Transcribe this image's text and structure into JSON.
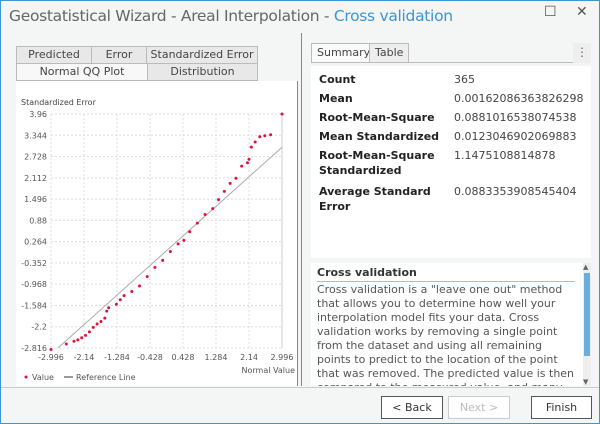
{
  "window": {
    "title_main": "Geostatistical Wizard - Areal Interpolation - ",
    "title_step": "Cross validation",
    "maximize_icon": "maximize-icon",
    "close_icon": "close-icon",
    "maximize": "☐",
    "close": "✕"
  },
  "left_tabs": {
    "row1": [
      "Predicted",
      "Error",
      "Standardized Error"
    ],
    "row2": [
      "Normal QQ Plot",
      "Distribution"
    ],
    "selected": "Normal QQ Plot"
  },
  "chart_data": {
    "type": "scatter",
    "ylabel": "Standardized Error",
    "xlabel": "Normal Value",
    "xlim": [
      -2.996,
      2.996
    ],
    "ylim": [
      -2.816,
      3.96
    ],
    "xticks": [
      "-2.996",
      "-2.14",
      "-1.284",
      "-0.428",
      "0.428",
      "1.284",
      "2.14",
      "2.996"
    ],
    "yticks": [
      "3.96",
      "3.344",
      "2.728",
      "2.112",
      "1.496",
      "0.88",
      "0.264",
      "-0.352",
      "-0.968",
      "-1.584",
      "-2.2",
      "-2.816"
    ],
    "grid": true,
    "legend_placement": "bottom-left",
    "legend": [
      "Value",
      "Reference Line"
    ],
    "series": [
      {
        "name": "Value",
        "color": "#e0103a",
        "points": [
          [
            -2.996,
            -2.86
          ],
          [
            -2.6,
            -2.7
          ],
          [
            -2.4,
            -2.62
          ],
          [
            -2.3,
            -2.58
          ],
          [
            -2.2,
            -2.52
          ],
          [
            -2.1,
            -2.45
          ],
          [
            -2.0,
            -2.35
          ],
          [
            -1.9,
            -2.22
          ],
          [
            -1.8,
            -2.12
          ],
          [
            -1.7,
            -2.05
          ],
          [
            -1.6,
            -1.95
          ],
          [
            -1.55,
            -1.75
          ],
          [
            -1.5,
            -1.65
          ],
          [
            -1.3,
            -1.55
          ],
          [
            -1.2,
            -1.42
          ],
          [
            -1.1,
            -1.3
          ],
          [
            -0.9,
            -1.18
          ],
          [
            -0.7,
            -1.02
          ],
          [
            -0.5,
            -0.75
          ],
          [
            -0.3,
            -0.48
          ],
          [
            -0.1,
            -0.28
          ],
          [
            0.1,
            -0.02
          ],
          [
            0.3,
            0.2
          ],
          [
            0.45,
            0.3
          ],
          [
            0.6,
            0.55
          ],
          [
            0.8,
            0.8
          ],
          [
            1.0,
            1.05
          ],
          [
            1.2,
            1.22
          ],
          [
            1.35,
            1.48
          ],
          [
            1.5,
            1.72
          ],
          [
            1.65,
            1.95
          ],
          [
            1.8,
            2.1
          ],
          [
            1.95,
            2.45
          ],
          [
            2.1,
            2.55
          ],
          [
            2.14,
            2.65
          ],
          [
            2.2,
            3.0
          ],
          [
            2.3,
            3.15
          ],
          [
            2.42,
            3.3
          ],
          [
            2.55,
            3.33
          ],
          [
            2.7,
            3.36
          ],
          [
            2.996,
            3.96
          ]
        ]
      },
      {
        "name": "Reference Line",
        "color": "#aaaaaa",
        "type": "line",
        "points": [
          [
            -2.816,
            -2.816
          ],
          [
            2.996,
            2.996
          ]
        ]
      }
    ]
  },
  "right_tabs": {
    "items": [
      "Summary",
      "Table"
    ],
    "selected": "Summary",
    "more": "⋮"
  },
  "summary": [
    {
      "label": "Count",
      "value": "365"
    },
    {
      "label": "Mean",
      "value": "0.00162086363826298"
    },
    {
      "label": "Root-Mean-Square",
      "value": "0.0881016538074538"
    },
    {
      "label": "Mean Standardized",
      "value": "0.0123046902069883"
    },
    {
      "label": "Root-Mean-Square Standardized",
      "value": "1.1475108814878"
    },
    {
      "label": "Average Standard Error",
      "value": "0.0883353908545404"
    }
  ],
  "help": {
    "title": "Cross validation",
    "text": "Cross validation is a \"leave one out\" method that allows you to determine how well your interpolation model fits your data. Cross validation works by removing a single point from the dataset and using all remaining points to predict to the location of the point that was removed. The predicted value is then compared to the measured value, and many statistics are generated to determine the accuracy of the"
  },
  "buttons": {
    "back": "< Back",
    "next": "Next >",
    "finish": "Finish"
  }
}
